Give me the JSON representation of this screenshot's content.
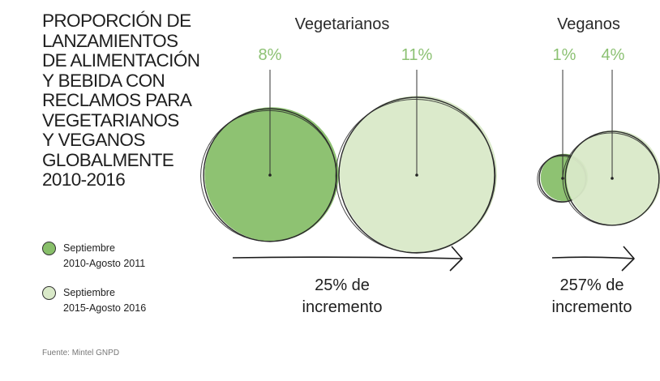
{
  "title_lines": [
    "PROPORCIÓN DE",
    "LANZAMIENTOS",
    "DE ALIMENTACIÓN",
    "Y BEBIDA CON",
    "RECLAMOS PARA",
    "VEGETARIANOS",
    "Y VEGANOS",
    "GLOBALMENTE",
    "2010-2016"
  ],
  "legend": [
    {
      "line1": "Septiembre",
      "line2": "2010-Agosto 2011",
      "color": "#88bf6a"
    },
    {
      "line1": "Septiembre",
      "line2": "2015-Agosto 2016",
      "color": "#d9e9c8"
    }
  ],
  "source": "Fuente: Mintel GNPD",
  "colors": {
    "period1": "#88bf6a",
    "period2": "#d9e9c8",
    "pct_text": "#8cc173",
    "outline": "#2b2b2b"
  },
  "chart_data": {
    "type": "bubble",
    "title": "PROPORCIÓN DE LANZAMIENTOS DE ALIMENTACIÓN Y BEBIDA CON RECLAMOS PARA VEGETARIANOS Y VEGANOS GLOBALMENTE 2010-2016",
    "series": [
      {
        "name": "Septiembre 2010-Agosto 2011",
        "values": [
          8,
          1
        ]
      },
      {
        "name": "Septiembre 2015-Agosto 2016",
        "values": [
          11,
          4
        ]
      }
    ],
    "groups": [
      {
        "name": "Vegetarianos",
        "values": [
          8,
          11
        ],
        "labels": [
          "8%",
          "11%"
        ],
        "change_line1": "25% de",
        "change_line2": "incremento"
      },
      {
        "name": "Veganos",
        "values": [
          1,
          4
        ],
        "labels": [
          "1%",
          "4%"
        ],
        "change_line1": "257% de",
        "change_line2": "incremento"
      }
    ]
  }
}
